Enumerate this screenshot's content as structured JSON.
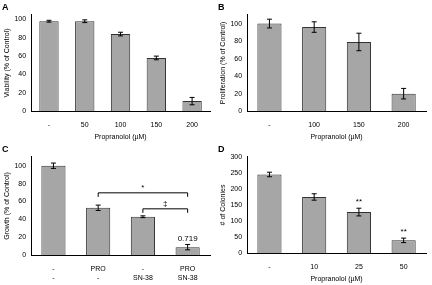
{
  "chart_data": [
    {
      "type": "bar",
      "title": "A",
      "y_label": "Viability (% of Control)",
      "x_label": "Propranolol (µM)",
      "categories": [
        "-",
        "50",
        "100",
        "150",
        "200"
      ],
      "values": [
        98,
        98,
        84,
        58,
        11
      ],
      "errors": [
        1,
        1.5,
        2,
        2,
        4
      ],
      "color": "#a6a6a6",
      "ylim": [
        0,
        105
      ],
      "yticks": [
        0,
        20,
        40,
        60,
        80,
        100
      ],
      "grid": false
    },
    {
      "type": "bar",
      "title": "B",
      "y_label": "Proliferation (% of Control)",
      "x_label": "Propranolol (µM)",
      "categories": [
        "-",
        "100",
        "150",
        "200"
      ],
      "values": [
        100,
        96,
        79,
        20
      ],
      "errors": [
        5,
        6,
        10,
        6
      ],
      "color": "#a6a6a6",
      "ylim": [
        0,
        110
      ],
      "yticks": [
        0,
        20,
        40,
        60,
        80,
        100
      ],
      "grid": false
    },
    {
      "type": "bar",
      "title": "C",
      "y_label": "Growth (% of Control)",
      "categories": [
        [
          "-",
          "-"
        ],
        [
          "PRO",
          "-"
        ],
        [
          "-",
          "SN-38"
        ],
        [
          "PRO",
          "SN-38"
        ]
      ],
      "values": [
        100,
        53,
        43,
        9
      ],
      "errors": [
        3,
        3,
        1,
        3
      ],
      "color": "#a6a6a6",
      "ylim": [
        0,
        110
      ],
      "yticks": [
        0,
        20,
        40,
        60,
        80,
        100
      ],
      "grid": false,
      "annotations": [
        {
          "text": "‡",
          "from": 2,
          "to": 3
        },
        {
          "text": "*",
          "from": 1,
          "to": 3
        },
        {
          "text": "0.719",
          "at": 3
        }
      ]
    },
    {
      "type": "bar",
      "title": "D",
      "y_label": "# of Colonies",
      "x_label": "Propranolol (µM)",
      "categories": [
        "-",
        "10",
        "25",
        "50"
      ],
      "values": [
        245,
        175,
        128,
        40
      ],
      "errors": [
        7,
        10,
        12,
        7
      ],
      "color": "#a6a6a6",
      "ylim": [
        0,
        300
      ],
      "yticks": [
        0,
        50,
        100,
        150,
        200,
        250,
        300
      ],
      "grid": false,
      "annotations": [
        {
          "text": "**",
          "at": 2
        },
        {
          "text": "**",
          "at": 3
        }
      ]
    }
  ]
}
